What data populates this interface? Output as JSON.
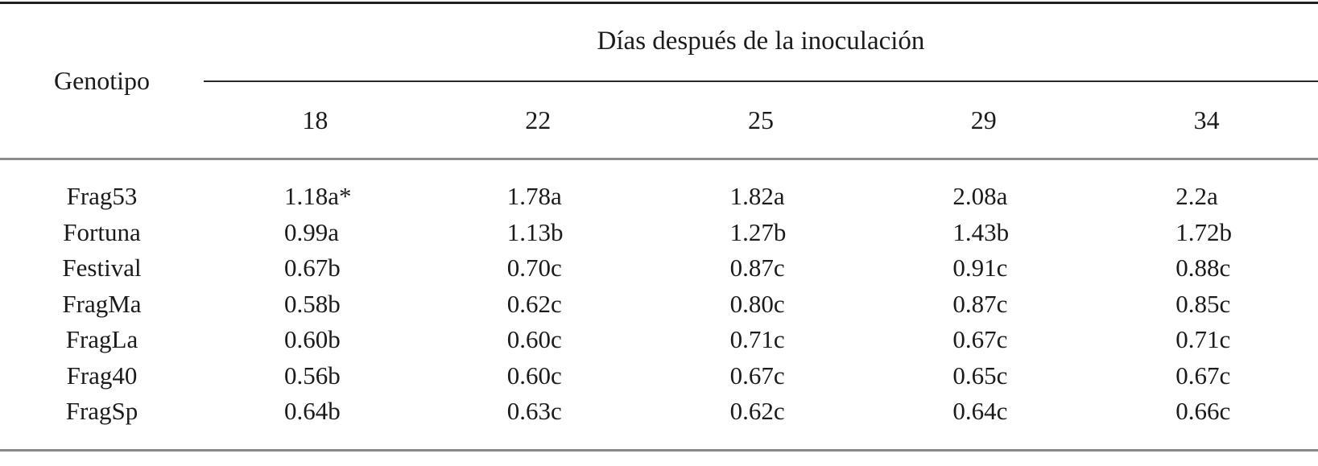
{
  "colors": {
    "background": "#ffffff",
    "text": "#1b1b1b",
    "rule_dark": "#1f1f1f",
    "rule_gray": "#8d8d8d"
  },
  "table": {
    "corner_label": "Genotipo",
    "group_header": "Días después de la inoculación",
    "day_headers": [
      "18",
      "22",
      "25",
      "29",
      "34"
    ],
    "rows": [
      {
        "genotype": "Frag53",
        "values": [
          "1.18a*",
          "1.78a",
          "1.82a",
          "2.08a",
          "2.2a"
        ]
      },
      {
        "genotype": "Fortuna",
        "values": [
          "0.99a",
          "1.13b",
          "1.27b",
          "1.43b",
          "1.72b"
        ]
      },
      {
        "genotype": "Festival",
        "values": [
          "0.67b",
          "0.70c",
          "0.87c",
          "0.91c",
          "0.88c"
        ]
      },
      {
        "genotype": "FragMa",
        "values": [
          "0.58b",
          "0.62c",
          "0.80c",
          "0.87c",
          "0.85c"
        ]
      },
      {
        "genotype": "FragLa",
        "values": [
          "0.60b",
          "0.60c",
          "0.71c",
          "0.67c",
          "0.71c"
        ]
      },
      {
        "genotype": "Frag40",
        "values": [
          "0.56b",
          "0.60c",
          "0.67c",
          "0.65c",
          "0.67c"
        ]
      },
      {
        "genotype": "FragSp",
        "values": [
          "0.64b",
          "0.63c",
          "0.62c",
          "0.64c",
          "0.66c"
        ]
      }
    ]
  },
  "chart_data": {
    "type": "table",
    "title": "Días después de la inoculación",
    "columns": [
      "Genotipo",
      "18",
      "22",
      "25",
      "29",
      "34"
    ],
    "rows": [
      [
        "Frag53",
        "1.18a*",
        "1.78a",
        "1.82a",
        "2.08a",
        "2.2a"
      ],
      [
        "Fortuna",
        "0.99a",
        "1.13b",
        "1.27b",
        "1.43b",
        "1.72b"
      ],
      [
        "Festival",
        "0.67b",
        "0.70c",
        "0.87c",
        "0.91c",
        "0.88c"
      ],
      [
        "FragMa",
        "0.58b",
        "0.62c",
        "0.80c",
        "0.87c",
        "0.85c"
      ],
      [
        "FragLa",
        "0.60b",
        "0.60c",
        "0.71c",
        "0.67c",
        "0.71c"
      ],
      [
        "Frag40",
        "0.56b",
        "0.60c",
        "0.67c",
        "0.65c",
        "0.67c"
      ],
      [
        "FragSp",
        "0.64b",
        "0.63c",
        "0.62c",
        "0.64c",
        "0.66c"
      ]
    ]
  }
}
